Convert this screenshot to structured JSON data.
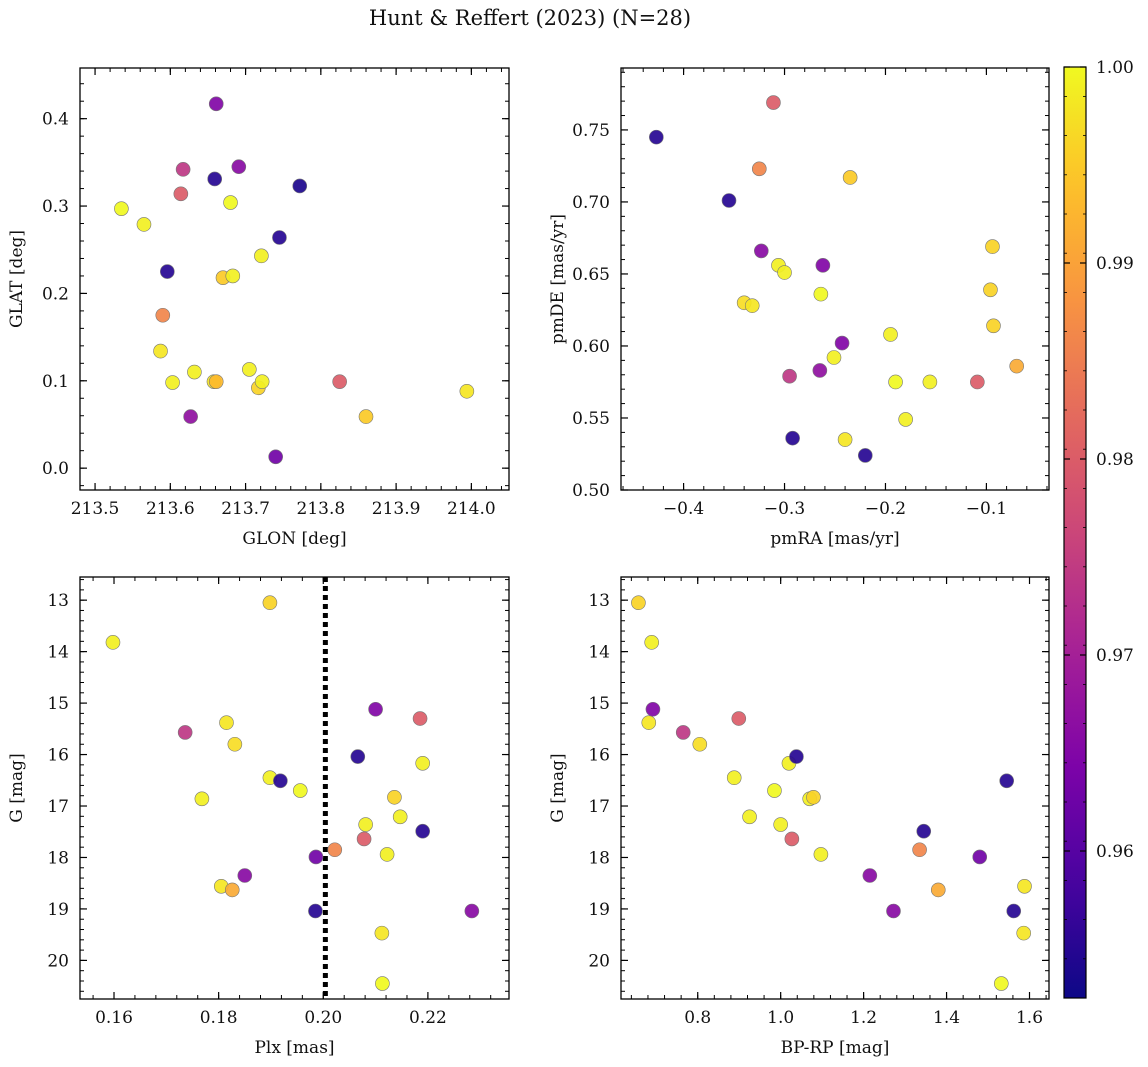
{
  "figure": {
    "title": "Hunt & Reffert (2023) (N=28)"
  },
  "colorbar": {
    "ticks": [
      "0.96",
      "0.97",
      "0.98",
      "0.99",
      "1.00"
    ],
    "tick_values": [
      0.96,
      0.97,
      0.98,
      0.99,
      1.0
    ],
    "range": [
      0.9525,
      1.0
    ],
    "colormap": "plasma"
  },
  "chart_data": [
    {
      "type": "scatter",
      "xlabel": "GLON [deg]",
      "ylabel": "GLAT [deg]",
      "xlim": [
        213.48,
        214.05
      ],
      "ylim": [
        -0.025,
        0.458
      ],
      "xticks": [
        213.5,
        213.6,
        213.7,
        213.8,
        213.9,
        214.0
      ],
      "xtick_labels": [
        "213.5",
        "213.6",
        "213.7",
        "213.8",
        "213.9",
        "214.0"
      ],
      "yticks": [
        0.0,
        0.1,
        0.2,
        0.3,
        0.4
      ],
      "ytick_labels": [
        "0.0",
        "0.1",
        "0.2",
        "0.3",
        "0.4"
      ],
      "points": [
        {
          "x": 213.535,
          "y": 0.297,
          "c": 1.0
        },
        {
          "x": 213.565,
          "y": 0.279,
          "c": 0.999
        },
        {
          "x": 213.587,
          "y": 0.134,
          "c": 0.998
        },
        {
          "x": 213.59,
          "y": 0.175,
          "c": 0.986
        },
        {
          "x": 213.596,
          "y": 0.225,
          "c": 0.955
        },
        {
          "x": 213.603,
          "y": 0.098,
          "c": 0.999
        },
        {
          "x": 213.614,
          "y": 0.314,
          "c": 0.98
        },
        {
          "x": 213.617,
          "y": 0.342,
          "c": 0.974
        },
        {
          "x": 213.627,
          "y": 0.059,
          "c": 0.967
        },
        {
          "x": 213.632,
          "y": 0.11,
          "c": 0.999
        },
        {
          "x": 213.658,
          "y": 0.099,
          "c": 0.998
        },
        {
          "x": 213.659,
          "y": 0.331,
          "c": 0.955
        },
        {
          "x": 213.661,
          "y": 0.099,
          "c": 0.993
        },
        {
          "x": 213.661,
          "y": 0.417,
          "c": 0.965
        },
        {
          "x": 213.67,
          "y": 0.218,
          "c": 0.995
        },
        {
          "x": 213.68,
          "y": 0.304,
          "c": 1.0
        },
        {
          "x": 213.683,
          "y": 0.22,
          "c": 0.999
        },
        {
          "x": 213.691,
          "y": 0.345,
          "c": 0.966
        },
        {
          "x": 213.705,
          "y": 0.113,
          "c": 0.999
        },
        {
          "x": 213.717,
          "y": 0.092,
          "c": 0.996
        },
        {
          "x": 213.721,
          "y": 0.243,
          "c": 0.999
        },
        {
          "x": 213.722,
          "y": 0.099,
          "c": 0.999
        },
        {
          "x": 213.74,
          "y": 0.013,
          "c": 0.963
        },
        {
          "x": 213.745,
          "y": 0.264,
          "c": 0.955
        },
        {
          "x": 213.772,
          "y": 0.323,
          "c": 0.954
        },
        {
          "x": 213.825,
          "y": 0.099,
          "c": 0.98
        },
        {
          "x": 213.86,
          "y": 0.059,
          "c": 0.995
        },
        {
          "x": 213.994,
          "y": 0.088,
          "c": 0.998
        }
      ]
    },
    {
      "type": "scatter",
      "xlabel": "pmRA [mas/yr]",
      "ylabel": "pmDE [mas/yr]",
      "xlim": [
        -0.462,
        -0.038
      ],
      "ylim": [
        0.5,
        0.793
      ],
      "xticks": [
        -0.4,
        -0.3,
        -0.2,
        -0.1
      ],
      "xtick_labels": [
        "−0.4",
        "−0.3",
        "−0.2",
        "−0.1"
      ],
      "yticks": [
        0.5,
        0.55,
        0.6,
        0.65,
        0.7,
        0.75
      ],
      "ytick_labels": [
        "0.50",
        "0.55",
        "0.60",
        "0.65",
        "0.70",
        "0.75"
      ],
      "points": [
        {
          "x": -0.427,
          "y": 0.745,
          "c": 0.955
        },
        {
          "x": -0.355,
          "y": 0.701,
          "c": 0.955
        },
        {
          "x": -0.34,
          "y": 0.63,
          "c": 0.997
        },
        {
          "x": -0.332,
          "y": 0.628,
          "c": 0.998
        },
        {
          "x": -0.325,
          "y": 0.723,
          "c": 0.986
        },
        {
          "x": -0.323,
          "y": 0.666,
          "c": 0.966
        },
        {
          "x": -0.311,
          "y": 0.769,
          "c": 0.98
        },
        {
          "x": -0.306,
          "y": 0.656,
          "c": 0.999
        },
        {
          "x": -0.3,
          "y": 0.651,
          "c": 0.999
        },
        {
          "x": -0.295,
          "y": 0.579,
          "c": 0.974
        },
        {
          "x": -0.292,
          "y": 0.536,
          "c": 0.955
        },
        {
          "x": -0.265,
          "y": 0.583,
          "c": 0.967
        },
        {
          "x": -0.264,
          "y": 0.636,
          "c": 1.0
        },
        {
          "x": -0.262,
          "y": 0.656,
          "c": 0.965
        },
        {
          "x": -0.251,
          "y": 0.592,
          "c": 0.999
        },
        {
          "x": -0.243,
          "y": 0.602,
          "c": 0.965
        },
        {
          "x": -0.24,
          "y": 0.535,
          "c": 0.998
        },
        {
          "x": -0.235,
          "y": 0.717,
          "c": 0.995
        },
        {
          "x": -0.22,
          "y": 0.524,
          "c": 0.955
        },
        {
          "x": -0.195,
          "y": 0.608,
          "c": 0.999
        },
        {
          "x": -0.19,
          "y": 0.575,
          "c": 1.0
        },
        {
          "x": -0.18,
          "y": 0.549,
          "c": 0.999
        },
        {
          "x": -0.156,
          "y": 0.575,
          "c": 0.999
        },
        {
          "x": -0.109,
          "y": 0.575,
          "c": 0.98
        },
        {
          "x": -0.096,
          "y": 0.639,
          "c": 0.996
        },
        {
          "x": -0.094,
          "y": 0.669,
          "c": 0.996
        },
        {
          "x": -0.093,
          "y": 0.614,
          "c": 0.996
        },
        {
          "x": -0.07,
          "y": 0.586,
          "c": 0.991
        }
      ]
    },
    {
      "type": "scatter",
      "xlabel": "Plx [mas]",
      "ylabel": "G [mag]",
      "xlim": [
        0.1535,
        0.2355
      ],
      "ylim": [
        20.75,
        12.55
      ],
      "y_inverted": true,
      "xticks": [
        0.16,
        0.18,
        0.2,
        0.22
      ],
      "xtick_labels": [
        "0.16",
        "0.18",
        "0.20",
        "0.22"
      ],
      "yticks": [
        13,
        14,
        15,
        16,
        17,
        18,
        19,
        20
      ],
      "ytick_labels": [
        "13",
        "14",
        "15",
        "16",
        "17",
        "18",
        "19",
        "20"
      ],
      "vline": {
        "x": 0.2004,
        "style": "dotted"
      },
      "points": [
        {
          "x": 0.1598,
          "y": 13.82,
          "c": 0.999
        },
        {
          "x": 0.1736,
          "y": 15.57,
          "c": 0.974
        },
        {
          "x": 0.1768,
          "y": 16.86,
          "c": 0.999
        },
        {
          "x": 0.1805,
          "y": 18.56,
          "c": 0.998
        },
        {
          "x": 0.1815,
          "y": 15.38,
          "c": 0.998
        },
        {
          "x": 0.1826,
          "y": 18.63,
          "c": 0.991
        },
        {
          "x": 0.1831,
          "y": 15.8,
          "c": 0.997
        },
        {
          "x": 0.185,
          "y": 18.35,
          "c": 0.966
        },
        {
          "x": 0.1898,
          "y": 13.05,
          "c": 0.996
        },
        {
          "x": 0.1898,
          "y": 16.45,
          "c": 0.999
        },
        {
          "x": 0.1918,
          "y": 16.51,
          "c": 0.955
        },
        {
          "x": 0.1956,
          "y": 16.7,
          "c": 1.0
        },
        {
          "x": 0.1985,
          "y": 19.04,
          "c": 0.955
        },
        {
          "x": 0.1986,
          "y": 17.99,
          "c": 0.963
        },
        {
          "x": 0.2022,
          "y": 17.85,
          "c": 0.986
        },
        {
          "x": 0.2066,
          "y": 16.04,
          "c": 0.955
        },
        {
          "x": 0.2078,
          "y": 17.64,
          "c": 0.98
        },
        {
          "x": 0.2081,
          "y": 17.36,
          "c": 0.999
        },
        {
          "x": 0.21,
          "y": 15.12,
          "c": 0.965
        },
        {
          "x": 0.2112,
          "y": 19.47,
          "c": 0.998
        },
        {
          "x": 0.2113,
          "y": 20.45,
          "c": 1.0
        },
        {
          "x": 0.2122,
          "y": 17.94,
          "c": 0.999
        },
        {
          "x": 0.2136,
          "y": 16.83,
          "c": 0.996
        },
        {
          "x": 0.2147,
          "y": 17.21,
          "c": 0.999
        },
        {
          "x": 0.2185,
          "y": 15.3,
          "c": 0.98
        },
        {
          "x": 0.219,
          "y": 17.49,
          "c": 0.955
        },
        {
          "x": 0.219,
          "y": 16.17,
          "c": 0.999
        },
        {
          "x": 0.2284,
          "y": 19.04,
          "c": 0.966
        }
      ]
    },
    {
      "type": "scatter",
      "xlabel": "BP-RP [mag]",
      "ylabel": "G [mag]",
      "xlim": [
        0.615,
        1.647
      ],
      "ylim": [
        20.75,
        12.55
      ],
      "y_inverted": true,
      "xticks": [
        0.8,
        1.0,
        1.2,
        1.4,
        1.6
      ],
      "xtick_labels": [
        "0.8",
        "1.0",
        "1.2",
        "1.4",
        "1.6"
      ],
      "yticks": [
        13,
        14,
        15,
        16,
        17,
        18,
        19,
        20
      ],
      "ytick_labels": [
        "13",
        "14",
        "15",
        "16",
        "17",
        "18",
        "19",
        "20"
      ],
      "points": [
        {
          "x": 0.657,
          "y": 13.05,
          "c": 0.996
        },
        {
          "x": 0.682,
          "y": 15.38,
          "c": 0.998
        },
        {
          "x": 0.689,
          "y": 13.82,
          "c": 0.999
        },
        {
          "x": 0.692,
          "y": 15.12,
          "c": 0.965
        },
        {
          "x": 0.765,
          "y": 15.57,
          "c": 0.974
        },
        {
          "x": 0.805,
          "y": 15.8,
          "c": 0.997
        },
        {
          "x": 0.888,
          "y": 16.45,
          "c": 0.999
        },
        {
          "x": 0.899,
          "y": 15.3,
          "c": 0.98
        },
        {
          "x": 0.925,
          "y": 17.21,
          "c": 0.999
        },
        {
          "x": 0.985,
          "y": 16.7,
          "c": 1.0
        },
        {
          "x": 1.0,
          "y": 17.36,
          "c": 0.999
        },
        {
          "x": 1.02,
          "y": 16.17,
          "c": 0.999
        },
        {
          "x": 1.038,
          "y": 16.04,
          "c": 0.955
        },
        {
          "x": 1.027,
          "y": 17.64,
          "c": 0.98
        },
        {
          "x": 1.07,
          "y": 16.86,
          "c": 0.999
        },
        {
          "x": 1.079,
          "y": 16.83,
          "c": 0.996
        },
        {
          "x": 1.097,
          "y": 17.94,
          "c": 0.999
        },
        {
          "x": 1.215,
          "y": 18.35,
          "c": 0.966
        },
        {
          "x": 1.272,
          "y": 19.04,
          "c": 0.966
        },
        {
          "x": 1.335,
          "y": 17.85,
          "c": 0.986
        },
        {
          "x": 1.345,
          "y": 17.49,
          "c": 0.955
        },
        {
          "x": 1.38,
          "y": 18.63,
          "c": 0.991
        },
        {
          "x": 1.48,
          "y": 17.99,
          "c": 0.963
        },
        {
          "x": 1.532,
          "y": 20.45,
          "c": 1.0
        },
        {
          "x": 1.545,
          "y": 16.51,
          "c": 0.955
        },
        {
          "x": 1.562,
          "y": 19.04,
          "c": 0.955
        },
        {
          "x": 1.588,
          "y": 18.56,
          "c": 0.998
        },
        {
          "x": 1.586,
          "y": 19.47,
          "c": 0.998
        }
      ]
    }
  ]
}
